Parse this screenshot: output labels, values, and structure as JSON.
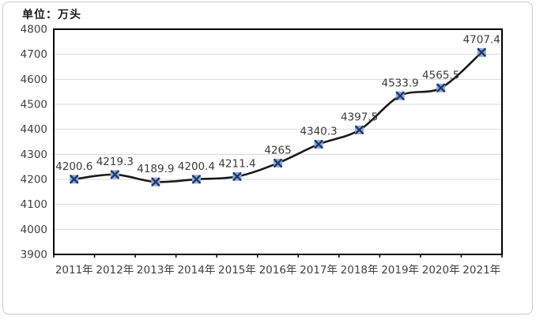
{
  "figure": {
    "unit_label": "单位：万头"
  },
  "chart_data": {
    "type": "line",
    "title": "",
    "xlabel": "",
    "ylabel": "",
    "unit_label": "单位：万头",
    "categories": [
      "2011年",
      "2012年",
      "2013年",
      "2014年",
      "2015年",
      "2016年",
      "2017年",
      "2018年",
      "2019年",
      "2020年",
      "2021年"
    ],
    "values": [
      4200.6,
      4219.3,
      4189.9,
      4200.4,
      4211.4,
      4265,
      4340.3,
      4397.5,
      4533.9,
      4565.5,
      4707.4
    ],
    "value_labels": [
      "4200.6",
      "4219.3",
      "4189.9",
      "4200.4",
      "4211.4",
      "4265",
      "4340.3",
      "4397.5",
      "4533.9",
      "4565.5",
      "4707.4"
    ],
    "ylim": [
      3900,
      4800
    ],
    "ytick_step": 100,
    "ytick_labels": [
      "3900",
      "4000",
      "4100",
      "4200",
      "4300",
      "4400",
      "4500",
      "4600",
      "4700",
      "4800"
    ],
    "grid": true,
    "legend_position": "none",
    "line_color": "#1a1a1a",
    "marker_fill": "#8faadc",
    "marker_stroke": "#1f3864",
    "grid_color": "#d9d9d9",
    "axis_color": "#000000",
    "tick_label_color": "#404040",
    "data_label_color": "#3b3b3b"
  }
}
